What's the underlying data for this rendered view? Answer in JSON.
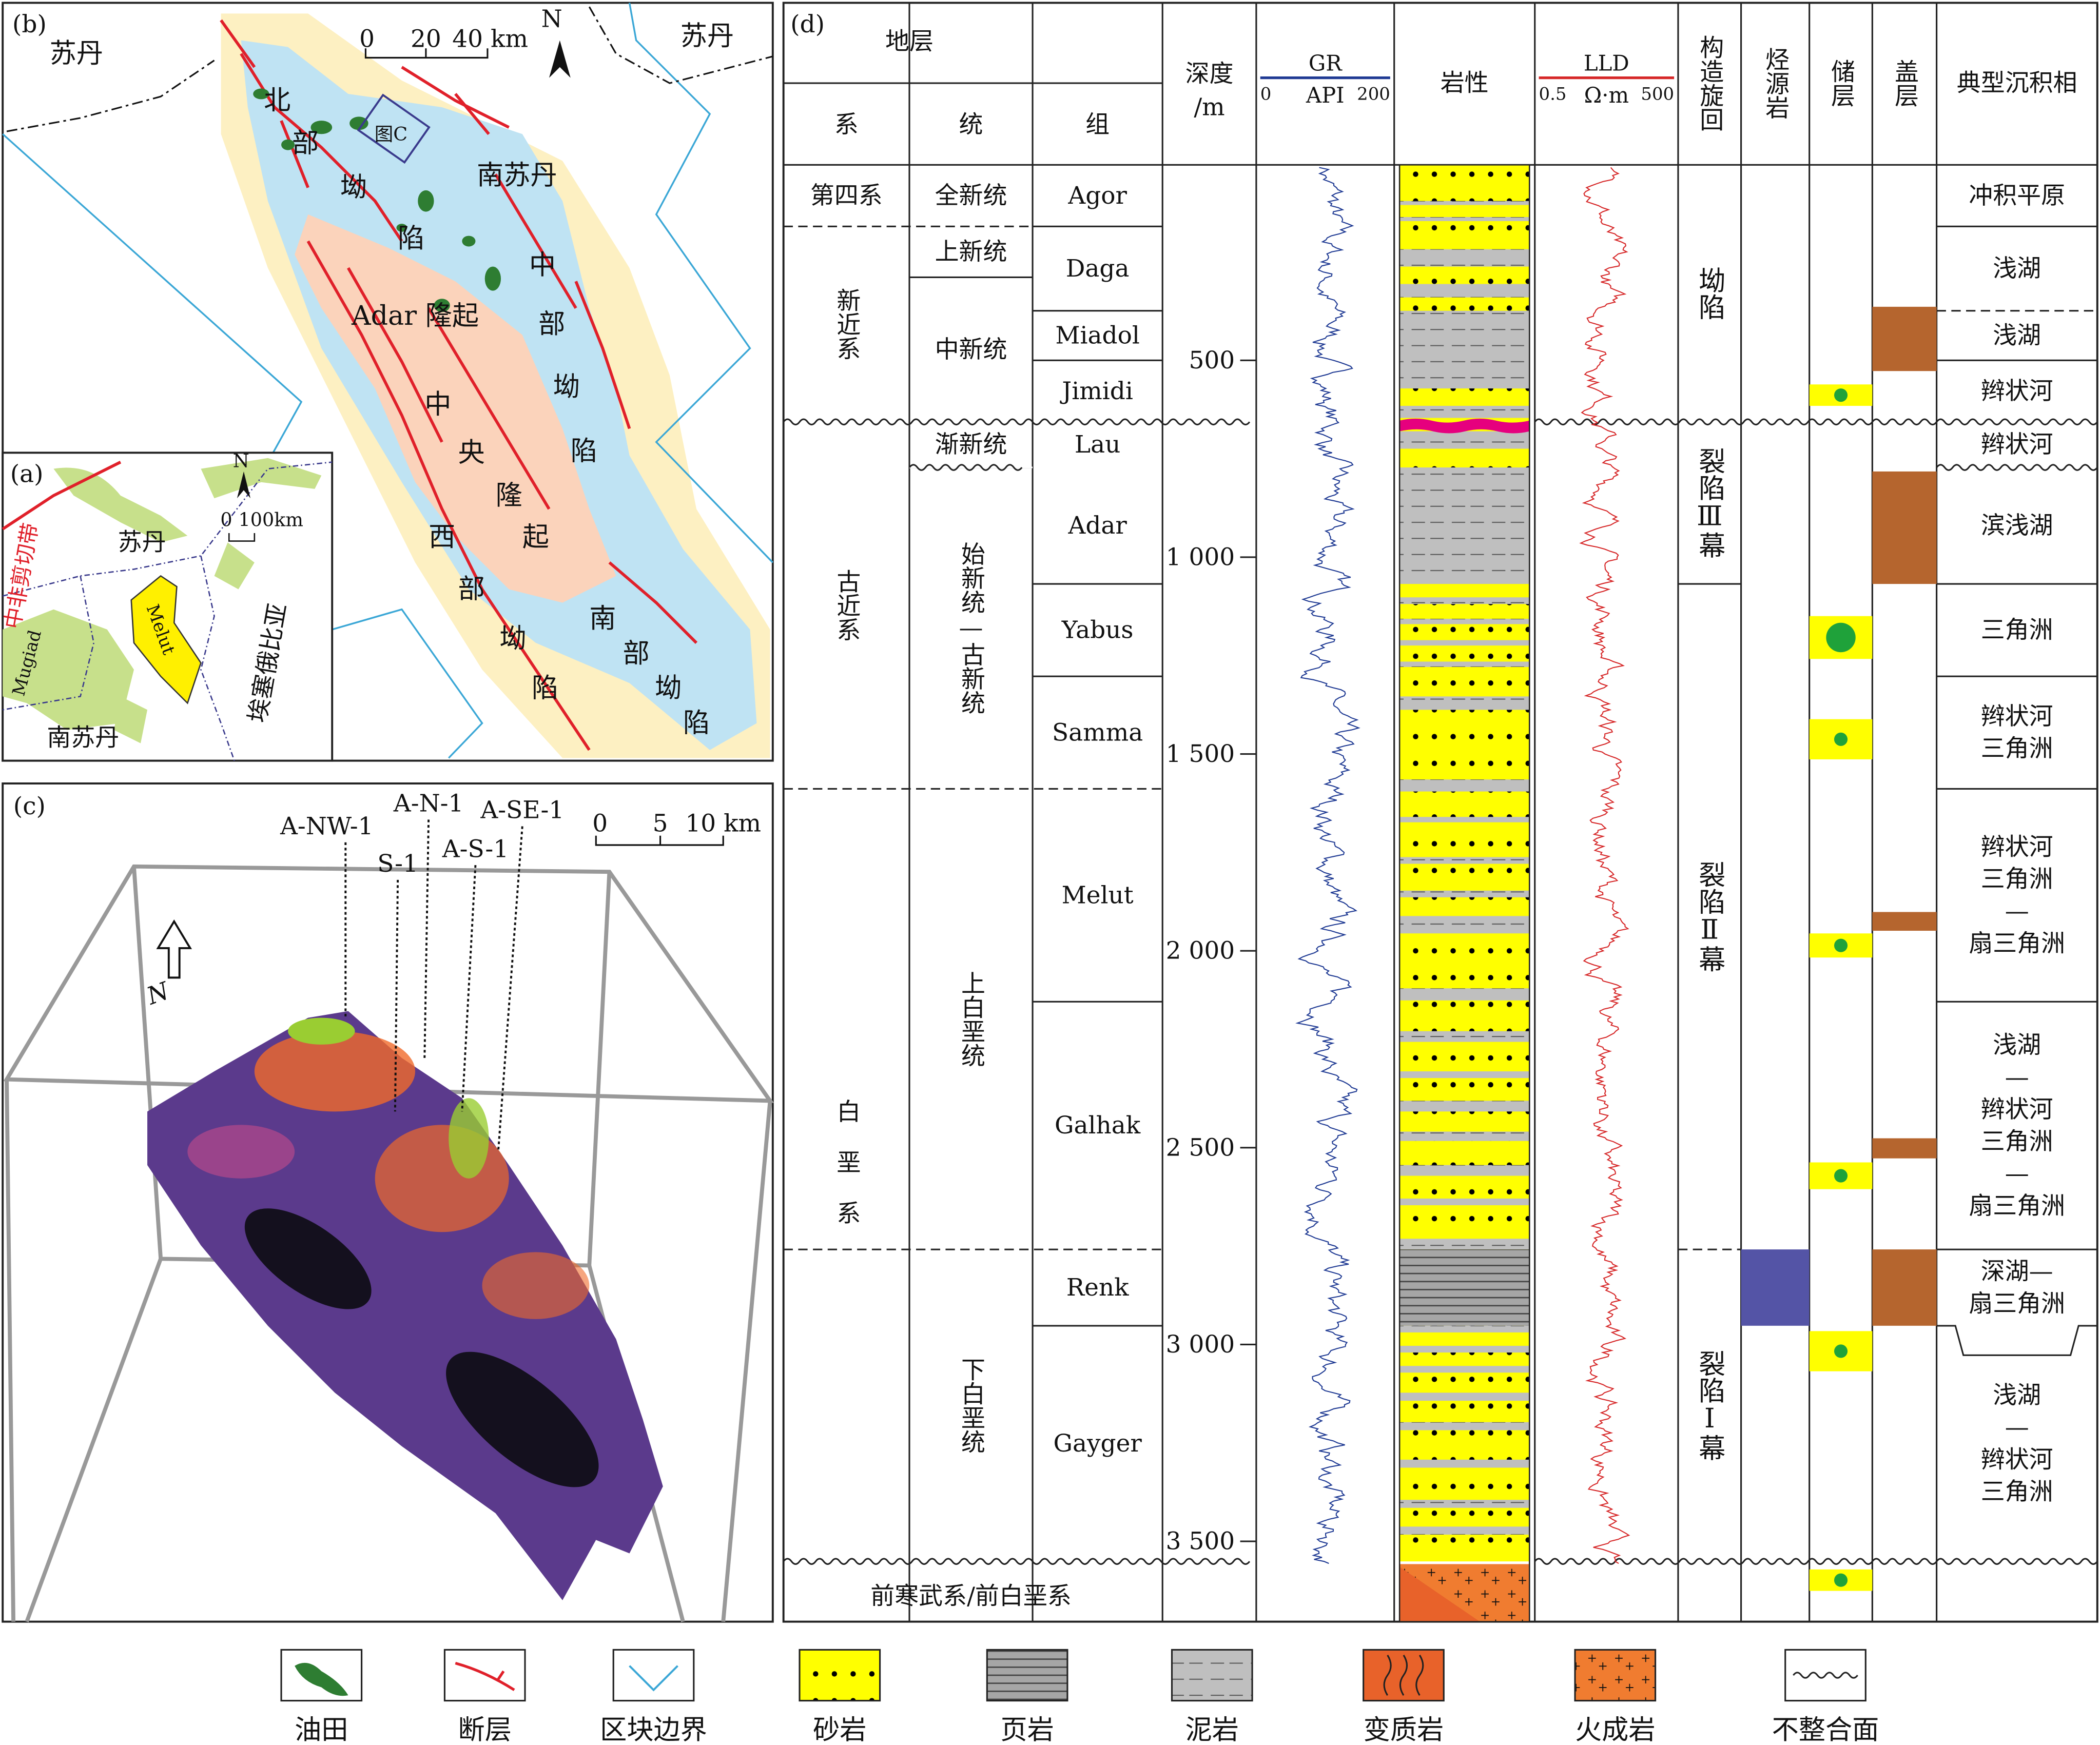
{
  "panel_b": {
    "label": "(b)",
    "sudan_left": "苏丹",
    "sudan_right": "苏丹",
    "scale_ticks": [
      0,
      20
    ],
    "scale_end": "40 km",
    "north": "N",
    "figure_c": "图C",
    "south_sudan": "南苏丹",
    "north_depression": [
      "北",
      "部",
      "坳",
      "陷"
    ],
    "central_depression": [
      "中",
      "部",
      "坳",
      "陷"
    ],
    "adar_uplift": "Adar 隆起",
    "central_uplift": [
      "中",
      "央",
      "隆",
      "起"
    ],
    "west_depression": [
      "西",
      "部",
      "坳",
      "陷"
    ],
    "south_depression": [
      "南",
      "部",
      "坳",
      "陷"
    ]
  },
  "panel_a": {
    "label": "(a)",
    "north": "N",
    "scale_start": 0,
    "scale_end": "100km",
    "sudan": "苏丹",
    "shear_zone": "中非剪切带",
    "mugiad": "Mugiad",
    "melut": "Melut",
    "ethiopia": "埃塞俄比亚",
    "south_sudan": "南苏丹"
  },
  "panel_c": {
    "label": "(c)",
    "wells": [
      "A-NW-1",
      "A-N-1",
      "S-1",
      "A-S-1",
      "A-SE-1"
    ],
    "scale_ticks": [
      0,
      5
    ],
    "scale_end": "10 km",
    "north": "N"
  },
  "panel_d": {
    "label": "(d)",
    "headers": {
      "strata": "地层",
      "system": "系",
      "series": "统",
      "formation": "组",
      "lithology": "岩性",
      "cycle": "构造旋回",
      "source": "烃源岩",
      "reservoir": "储层",
      "seal": "盖层",
      "facies": "典型沉积相"
    },
    "systems": [
      "第四系",
      "新近系",
      "古近系",
      "白垩系"
    ],
    "basement": "前寒武系/前白垩系",
    "series": [
      "全新统",
      "上新统",
      "中新统",
      "渐新统",
      "始新统—古新统",
      "上白垩统",
      "下白垩统"
    ],
    "formations": [
      "Agor",
      "Daga",
      "Miadol",
      "Jimidi",
      "Lau",
      "Adar",
      "Yabus",
      "Samma",
      "Melut",
      "Galhak",
      "Renk",
      "Gayger"
    ],
    "depth": {
      "label": [
        "深度",
        "/m"
      ],
      "ticks": [
        500,
        {
          "value": 1000,
          "label": "1 000"
        },
        {
          "value": 1500,
          "label": "1 500"
        },
        {
          "value": 2000,
          "label": "2 000"
        },
        {
          "value": 2500,
          "label": "2 500"
        },
        {
          "value": 3000,
          "label": "3 000"
        },
        {
          "value": 3500,
          "label": "3 500"
        }
      ]
    },
    "gr": {
      "name": "GR",
      "min": 0,
      "unit": "API",
      "max": 200,
      "color": "#1f3a93"
    },
    "lld": {
      "name": "LLD",
      "min": 0.5,
      "unit": "Ω·m",
      "max": 500,
      "color": "#d62728"
    },
    "cycles": [
      "坳陷",
      "裂陷Ⅲ幕",
      "裂陷Ⅱ幕",
      "裂陷Ⅰ幕"
    ],
    "facies": [
      [
        "冲积平原"
      ],
      [
        "浅湖"
      ],
      [
        "浅湖"
      ],
      [
        "辫状河"
      ],
      [
        "辫状河"
      ],
      [
        "滨浅湖"
      ],
      [
        "三角洲"
      ],
      [
        "辫状河",
        "三角洲"
      ],
      [
        "辫状河",
        "三角洲",
        "—",
        "扇三角洲"
      ],
      [
        "浅湖",
        "—",
        "辫状河",
        "三角洲",
        "—",
        "扇三角洲"
      ],
      [
        "深湖—",
        "扇三角洲"
      ],
      [
        "浅湖",
        "—",
        "辫状河",
        "三角洲"
      ]
    ]
  },
  "legend": [
    "油田",
    "断层",
    "区块边界",
    "砂岩",
    "页岩",
    "泥岩",
    "变质岩",
    "火成岩",
    "不整合面"
  ]
}
